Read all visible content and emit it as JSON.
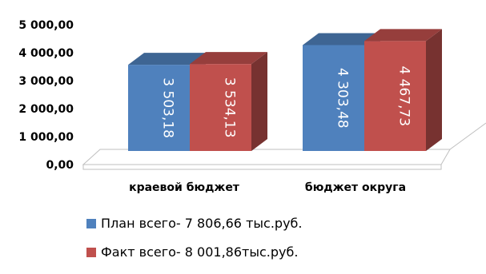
{
  "chart_data": {
    "type": "bar",
    "style": "3d-clustered-column",
    "categories": [
      "краевой бюджет",
      "бюджет округа"
    ],
    "series": [
      {
        "name": "План всего- 7 806,66 тыс.руб.",
        "color": "#4f81bd",
        "values": [
          3503.18,
          4303.48
        ]
      },
      {
        "name": "Факт всего- 8 001,86тыс.руб.",
        "color": "#c0504d",
        "values": [
          3534.13,
          4467.73
        ]
      }
    ],
    "data_labels": [
      [
        "3 503,18",
        "4 303,48"
      ],
      [
        "3 534,13",
        "4 467,73"
      ]
    ],
    "y_ticks": [
      0,
      1000,
      2000,
      3000,
      4000,
      5000
    ],
    "y_tick_labels": [
      "0,00",
      "1 000,00",
      "2 000,00",
      "3 000,00",
      "4 000,00",
      "5 000,00"
    ],
    "ylim": [
      0,
      5000
    ],
    "legend_position": "bottom",
    "grid": false
  }
}
